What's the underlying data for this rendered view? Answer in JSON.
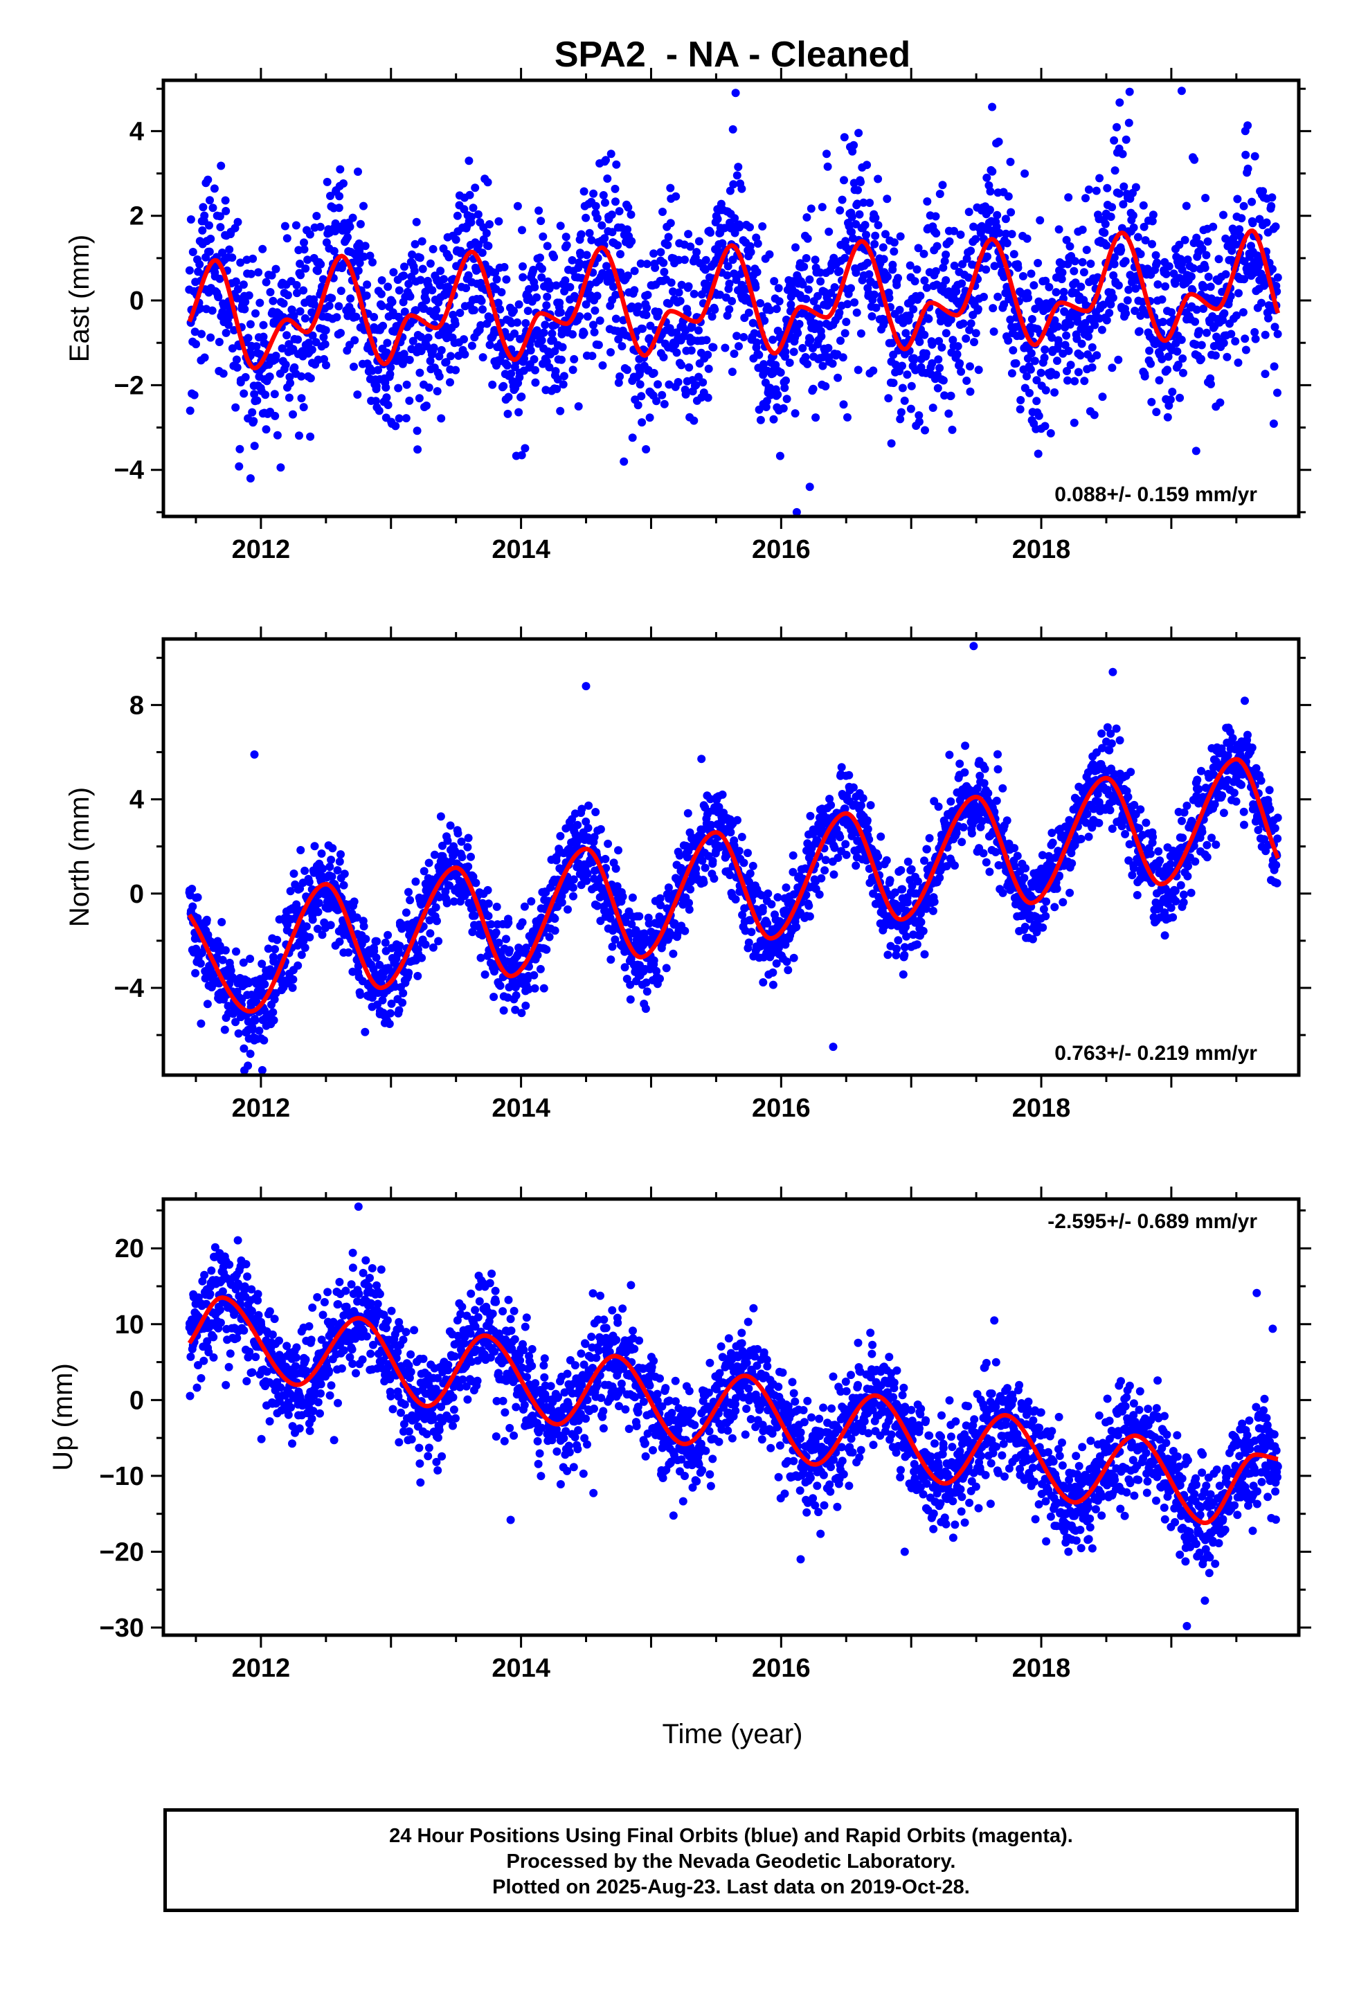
{
  "title": "SPA2  - NA - Cleaned",
  "xlabel": "Time (year)",
  "footer": {
    "line1": "24 Hour Positions Using Final Orbits (blue) and Rapid Orbits (magenta).",
    "line2": "Processed by the Nevada Geodetic Laboratory.",
    "line3": "Plotted on 2025-Aug-23. Last data on 2019-Oct-28."
  },
  "colors": {
    "points": "#0000ff",
    "model": "#ff0000",
    "frame": "#000000"
  },
  "chart_data": [
    {
      "type": "scatter",
      "component": "east",
      "ylabel": "East (mm)",
      "rate_label": "0.088+/- 0.159 mm/yr",
      "rate_position": "bottom-right",
      "xlim": [
        2011.25,
        2019.98
      ],
      "ylim": [
        -5.1,
        5.2
      ],
      "xticks": [
        2012,
        2014,
        2016,
        2018
      ],
      "yticks": [
        -4,
        -2,
        0,
        2,
        4
      ],
      "grid": false,
      "data_start": 2011.45,
      "data_end": 2019.82,
      "model": {
        "series": "red",
        "x": [
          2011.45,
          2011.65,
          2011.95,
          2012.2,
          2012.35,
          2012.62,
          2012.95,
          2013.15,
          2013.35,
          2013.62,
          2013.95,
          2014.15,
          2014.35,
          2014.62,
          2014.95,
          2015.15,
          2015.35,
          2015.62,
          2015.95,
          2016.15,
          2016.35,
          2016.62,
          2016.95,
          2017.15,
          2017.35,
          2017.62,
          2017.95,
          2018.15,
          2018.35,
          2018.62,
          2018.95,
          2019.15,
          2019.35,
          2019.62,
          2019.82
        ],
        "y": [
          -0.5,
          0.95,
          -1.6,
          -0.45,
          -0.75,
          1.05,
          -1.5,
          -0.35,
          -0.65,
          1.15,
          -1.4,
          -0.3,
          -0.55,
          1.25,
          -1.3,
          -0.25,
          -0.5,
          1.3,
          -1.25,
          -0.15,
          -0.4,
          1.4,
          -1.15,
          -0.05,
          -0.35,
          1.45,
          -1.05,
          -0.05,
          -0.25,
          1.6,
          -0.95,
          0.15,
          -0.2,
          1.65,
          -0.3
        ]
      },
      "scatter": {
        "noise_sd": 1.1,
        "n_points": 2700,
        "outliers": [
          [
            2015.65,
            4.9
          ],
          [
            2019.08,
            4.95
          ],
          [
            2016.12,
            -5.0
          ],
          [
            2011.92,
            -4.2
          ],
          [
            2016.22,
            -4.4
          ]
        ]
      }
    },
    {
      "type": "scatter",
      "component": "north",
      "ylabel": "North (mm)",
      "rate_label": "0.763+/- 0.219 mm/yr",
      "rate_position": "bottom-right",
      "xlim": [
        2011.25,
        2019.98
      ],
      "ylim": [
        -7.7,
        10.8
      ],
      "xticks": [
        2012,
        2014,
        2016,
        2018
      ],
      "yticks": [
        -4,
        0,
        4,
        8
      ],
      "grid": false,
      "data_start": 2011.45,
      "data_end": 2019.82,
      "model": {
        "series": "red",
        "x": [
          2011.45,
          2011.92,
          2012.5,
          2012.92,
          2013.5,
          2013.92,
          2014.5,
          2014.92,
          2015.5,
          2015.92,
          2016.5,
          2016.92,
          2017.5,
          2017.92,
          2018.5,
          2018.92,
          2019.5,
          2019.82
        ],
        "y": [
          -0.9,
          -5.0,
          0.4,
          -4.0,
          1.1,
          -3.5,
          1.9,
          -2.7,
          2.6,
          -1.9,
          3.4,
          -1.1,
          4.1,
          -0.4,
          4.9,
          0.4,
          5.7,
          1.5
        ]
      },
      "scatter": {
        "noise_sd": 0.95,
        "n_points": 2700,
        "outliers": [
          [
            2017.48,
            10.5
          ],
          [
            2011.95,
            5.9
          ],
          [
            2014.5,
            8.8
          ],
          [
            2018.55,
            9.4
          ],
          [
            2011.9,
            -7.3
          ],
          [
            2016.4,
            -6.5
          ]
        ]
      }
    },
    {
      "type": "scatter",
      "component": "up",
      "ylabel": "Up (mm)",
      "rate_label": "-2.595+/- 0.689 mm/yr",
      "rate_position": "top-right",
      "xlim": [
        2011.25,
        2019.98
      ],
      "ylim": [
        -31,
        26.5
      ],
      "xticks": [
        2012,
        2014,
        2016,
        2018
      ],
      "yticks": [
        -30,
        -20,
        -10,
        0,
        10,
        20
      ],
      "grid": false,
      "data_start": 2011.45,
      "data_end": 2019.82,
      "model": {
        "series": "red",
        "x": [
          2011.45,
          2011.7,
          2012.28,
          2012.75,
          2013.28,
          2013.72,
          2014.28,
          2014.72,
          2015.26,
          2015.72,
          2016.26,
          2016.72,
          2017.26,
          2017.72,
          2018.26,
          2018.72,
          2019.26,
          2019.65,
          2019.82
        ],
        "y": [
          7.5,
          13.5,
          2.0,
          10.8,
          -0.8,
          8.5,
          -3.2,
          5.8,
          -5.8,
          3.2,
          -8.5,
          0.6,
          -11.0,
          -2.0,
          -13.5,
          -4.7,
          -16.2,
          -7.2,
          -7.8
        ]
      },
      "scatter": {
        "noise_sd": 3.6,
        "n_points": 2700,
        "outliers": [
          [
            2012.75,
            25.5
          ],
          [
            2019.12,
            -29.8
          ],
          [
            2013.92,
            -15.8
          ],
          [
            2016.15,
            -21.0
          ],
          [
            2016.95,
            -20.0
          ],
          [
            2019.78,
            9.4
          ]
        ]
      }
    }
  ]
}
